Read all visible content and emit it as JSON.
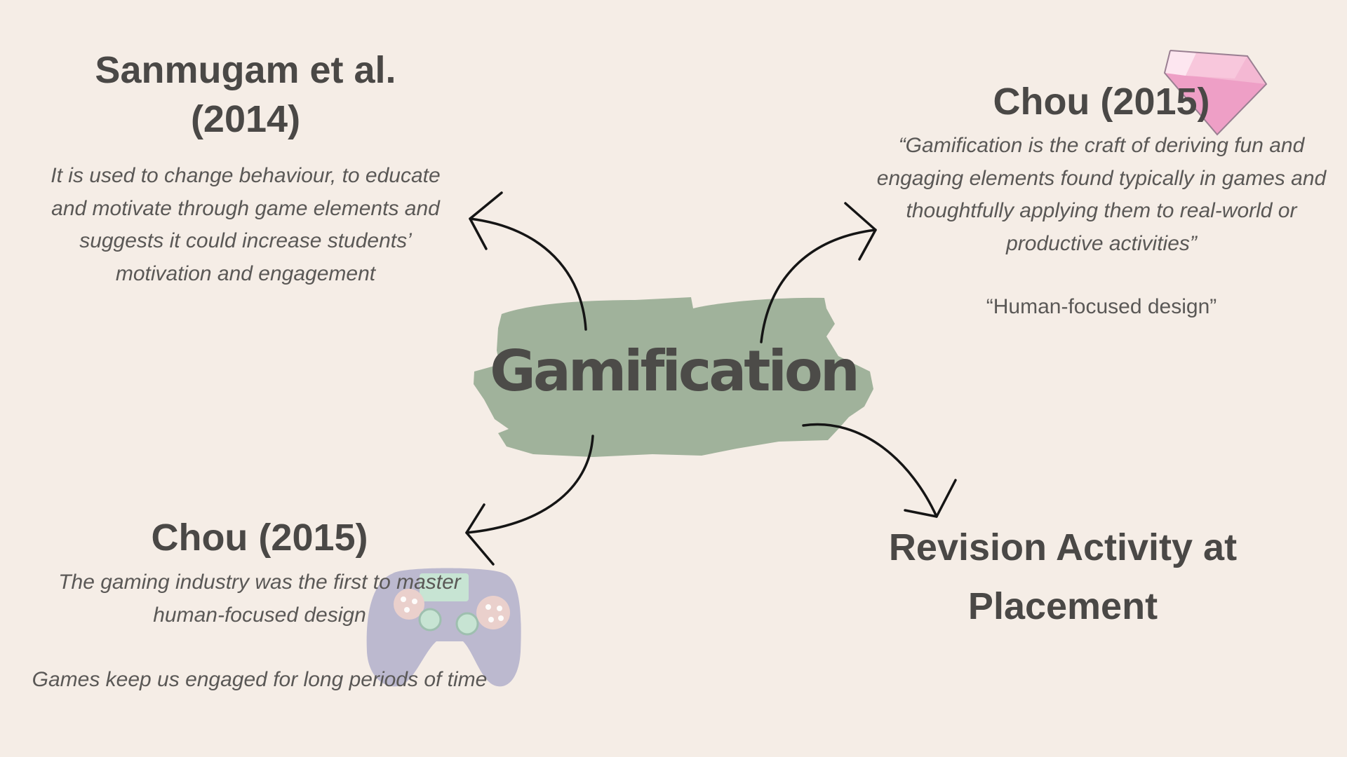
{
  "center": {
    "label": "Gamification"
  },
  "nodes": {
    "top_left": {
      "title_line1": "Sanmugam et al.",
      "title_line2": "(2014)",
      "body": [
        "It is used to change behaviour, to educate",
        "and motivate through game elements and",
        "suggests it could increase students’",
        "motivation and engagement"
      ]
    },
    "top_right": {
      "title": "Chou (2015)",
      "quote": [
        "“Gamification is the craft of deriving fun and",
        "engaging elements found typically in games and",
        "thoughtfully applying them to real-world or",
        "productive activities”"
      ],
      "note": "“Human-focused design”"
    },
    "bottom_left": {
      "title": "Chou (2015)",
      "body": [
        "The gaming industry was the first to master",
        "human-focused design"
      ],
      "body2": "Games keep us engaged for long periods of time"
    },
    "bottom_right": {
      "title_line1": "Revision Activity at",
      "title_line2": "Placement"
    }
  },
  "colors": {
    "background": "#f5ede6",
    "brush": "#a0b29b",
    "text": "#4a4846",
    "gem": "#f0a6c8",
    "controller": "#b3b0cc"
  },
  "icons": {
    "top_right": "gem-icon",
    "bottom_left": "game-controller-icon"
  }
}
